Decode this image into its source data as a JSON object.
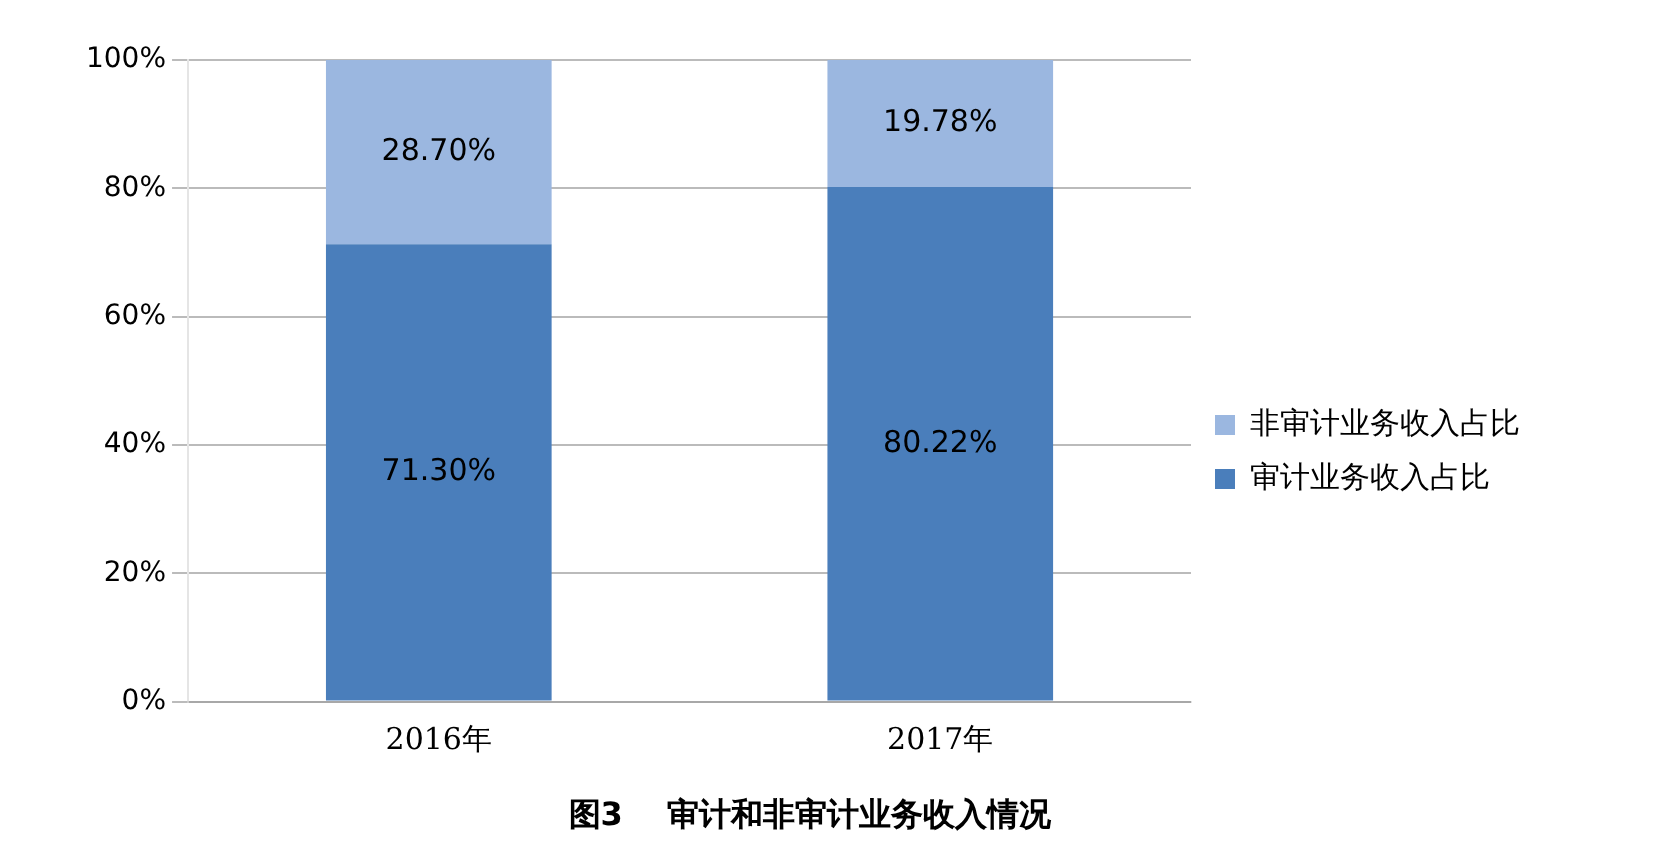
{
  "chart_data": {
    "type": "bar",
    "title": "图3    审计和非审计业务收入情况",
    "categories": [
      "2016年",
      "2017年"
    ],
    "stacked": true,
    "series": [
      {
        "name": "审计业务收入占比",
        "color": "#4a7ebb",
        "values": [
          71.3,
          80.22
        ],
        "value_labels": [
          "71.30%",
          "80.22%"
        ]
      },
      {
        "name": "非审计业务收入占比",
        "color": "#9bb7e0",
        "values": [
          28.7,
          19.78
        ],
        "value_labels": [
          "28.70%",
          "19.78%"
        ]
      }
    ],
    "ylim": [
      0,
      100
    ],
    "yticks": [
      {
        "value": 0,
        "label": "0%"
      },
      {
        "value": 20,
        "label": "20%"
      },
      {
        "value": 40,
        "label": "40%"
      },
      {
        "value": 60,
        "label": "60%"
      },
      {
        "value": 80,
        "label": "80%"
      },
      {
        "value": 100,
        "label": "100%"
      }
    ],
    "grid": "y",
    "legend": "right"
  }
}
